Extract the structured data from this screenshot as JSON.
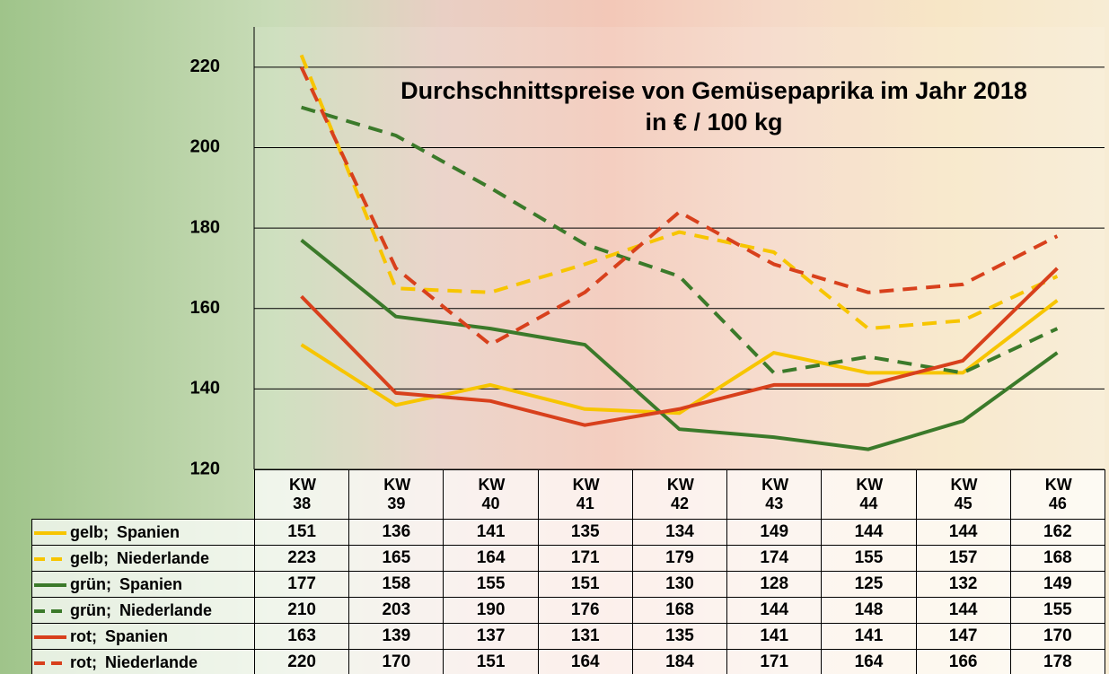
{
  "chart_data": {
    "type": "line",
    "title": "Durchschnittspreise von Gemüsepaprika im Jahr 2018",
    "subtitle": "in € / 100 kg",
    "categories": [
      "KW 38",
      "KW 39",
      "KW 40",
      "KW 41",
      "KW 42",
      "KW 43",
      "KW 44",
      "KW 45",
      "KW 46"
    ],
    "ylim": [
      120,
      230
    ],
    "yticks": [
      120,
      140,
      160,
      180,
      200,
      220
    ],
    "grid": true,
    "series": [
      {
        "name": "gelb; Spanien",
        "color": "#f7c500",
        "dashed": false,
        "values": [
          151,
          136,
          141,
          135,
          134,
          149,
          144,
          144,
          162
        ]
      },
      {
        "name": "gelb; Niederlande",
        "color": "#f7c500",
        "dashed": true,
        "values": [
          223,
          165,
          164,
          171,
          179,
          174,
          155,
          157,
          168
        ]
      },
      {
        "name": "grün; Spanien",
        "color": "#3b7a2a",
        "dashed": false,
        "values": [
          177,
          158,
          155,
          151,
          130,
          128,
          125,
          132,
          149
        ]
      },
      {
        "name": "grün; Niederlande",
        "color": "#3b7a2a",
        "dashed": true,
        "values": [
          210,
          203,
          190,
          176,
          168,
          144,
          148,
          144,
          155
        ]
      },
      {
        "name": "rot; Spanien",
        "color": "#d8401c",
        "dashed": false,
        "values": [
          163,
          139,
          137,
          131,
          135,
          141,
          141,
          147,
          170
        ]
      },
      {
        "name": "rot; Niederlande",
        "color": "#d8401c",
        "dashed": true,
        "values": [
          220,
          170,
          151,
          164,
          184,
          171,
          164,
          166,
          178
        ]
      }
    ]
  }
}
